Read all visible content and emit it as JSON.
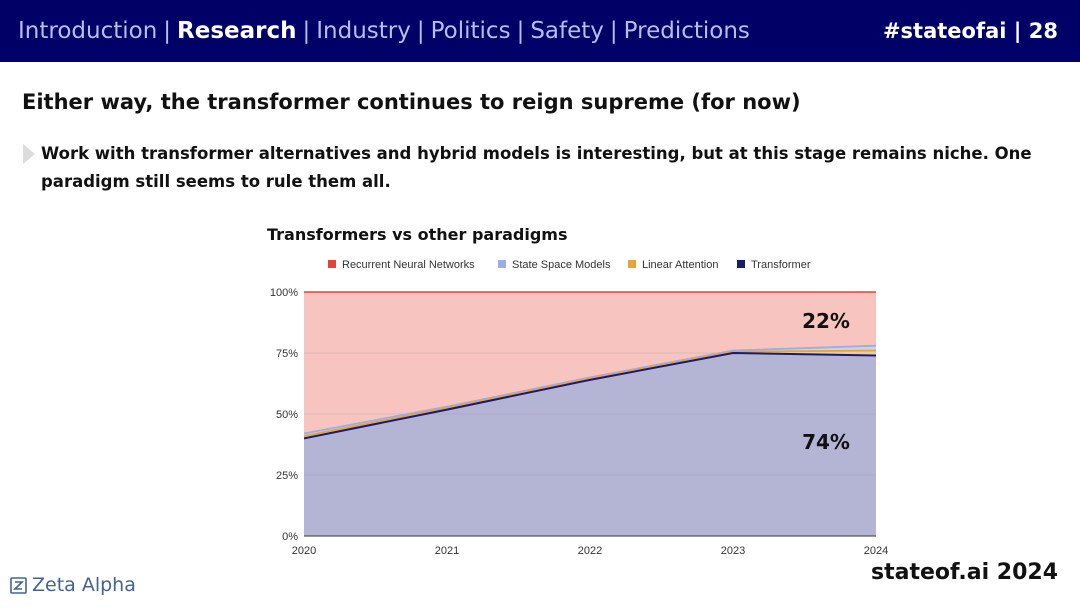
{
  "header": {
    "nav": [
      {
        "label": "Introduction",
        "active": false
      },
      {
        "label": "Research",
        "active": true
      },
      {
        "label": "Industry",
        "active": false
      },
      {
        "label": "Politics",
        "active": false
      },
      {
        "label": "Safety",
        "active": false
      },
      {
        "label": "Predictions",
        "active": false
      }
    ],
    "separator": "|",
    "slide_tag": "#stateofai | 28"
  },
  "headline": "Either way, the transformer continues to reign supreme (for now)",
  "bullet": "Work with transformer alternatives and hybrid models is interesting, but at this stage remains niche. One paradigm still seems to rule them all.",
  "footer": {
    "logo_text": "Zeta Alpha",
    "brand": "stateof.ai 2024"
  },
  "colors": {
    "header_bg": "#000066",
    "rnn": "#e8403a",
    "ssm": "#9aaee0",
    "linear_attention": "#e8a33a",
    "transformer": "#1a1a6e",
    "rnn_fill": "#f8c4c0",
    "transformer_fill": "#b4b4d4"
  },
  "chart_data": {
    "type": "area",
    "stacked": true,
    "title": "Transformers vs other paradigms",
    "x": [
      "2020",
      "2021",
      "2022",
      "2023",
      "2024"
    ],
    "series": [
      {
        "name": "Recurrent Neural Networks",
        "values": [
          58,
          47,
          35,
          24,
          22
        ]
      },
      {
        "name": "State Space Models",
        "values": [
          1,
          0.6,
          0.5,
          0.5,
          2
        ]
      },
      {
        "name": "Linear Attention",
        "values": [
          1,
          0.6,
          0.5,
          0.5,
          2
        ]
      },
      {
        "name": "Transformer",
        "values": [
          40,
          51.8,
          64,
          75,
          74
        ]
      }
    ],
    "y_ticks": [
      "0%",
      "25%",
      "50%",
      "75%",
      "100%"
    ],
    "ylim": [
      0,
      100
    ],
    "legend": "top",
    "annotations": [
      {
        "text": "22%",
        "series": "Recurrent Neural Networks"
      },
      {
        "text": "74%",
        "series": "Transformer"
      }
    ]
  }
}
